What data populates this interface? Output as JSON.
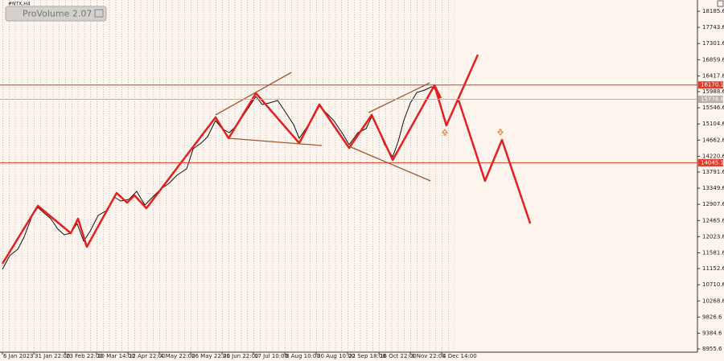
{
  "chart_data": {
    "type": "line",
    "title": "#NTX,H4",
    "indicator": "ProVolume 2.07",
    "xlim": [
      0,
      22.15
    ],
    "ylim": [
      8868,
      18493
    ],
    "xticks": [
      {
        "value": 0,
        "label": "6 Jan 2023"
      },
      {
        "value": 1,
        "label": "31 Jan 22:00"
      },
      {
        "value": 2,
        "label": "23 Feb 22:00"
      },
      {
        "value": 3,
        "label": "20 Mar 14:00"
      },
      {
        "value": 4,
        "label": "12 Apr 22:00"
      },
      {
        "value": 5,
        "label": "4 May 22:00"
      },
      {
        "value": 6,
        "label": "26 May 22:00"
      },
      {
        "value": 7,
        "label": "21 Jun 22:00"
      },
      {
        "value": 8,
        "label": "17 Jul 10:00"
      },
      {
        "value": 9,
        "label": "8 Aug 10:00"
      },
      {
        "value": 10,
        "label": "30 Aug 10:00"
      },
      {
        "value": 11,
        "label": "22 Sep 18:00"
      },
      {
        "value": 12,
        "label": "16 Oct 22:00"
      },
      {
        "value": 13,
        "label": "8 Nov 22:00"
      },
      {
        "value": 14,
        "label": "4 Dec 14:00"
      }
    ],
    "yticks": [
      18185.6,
      17743.6,
      17301.6,
      16859.6,
      16417.6,
      15988.6,
      15546.6,
      15104.6,
      14662.6,
      14220.6,
      13791.6,
      13349.6,
      12907.6,
      12465.6,
      12023.6,
      11581.6,
      11152.6,
      10710.6,
      10268.6,
      9826.6,
      9384.6,
      8955.6
    ],
    "levels": [
      {
        "value": 16170.1,
        "color": "#e03a2a"
      },
      {
        "value": 14045.1,
        "color": "#e03a2a"
      },
      {
        "value": 15778.8,
        "color": "#b8b0aa"
      }
    ],
    "series": [
      {
        "color": "#111111",
        "width": 1,
        "x": [
          0,
          0.23,
          0.49,
          0.69,
          0.95,
          1.13,
          1.33,
          1.54,
          1.77,
          1.97,
          2.18,
          2.38,
          2.59,
          2.79,
          3.05,
          3.31,
          3.56,
          3.77,
          4.03,
          4.28,
          4.54,
          4.79,
          5.05,
          5.31,
          5.56,
          5.87,
          6.08,
          6.33,
          6.54,
          6.79,
          7.0,
          7.23,
          7.49,
          7.74,
          8.08,
          8.28,
          8.51,
          8.77,
          9.03,
          9.28,
          9.46,
          9.67,
          9.92,
          10.1,
          10.31,
          10.56,
          10.82,
          11.05,
          11.33,
          11.59,
          11.77,
          11.97,
          12.18,
          12.44,
          12.62,
          12.79,
          13.0,
          13.21,
          13.46,
          13.67,
          13.77,
          13.92
        ],
        "values": [
          11131,
          11505,
          11680,
          12010,
          12603,
          12823,
          12669,
          12516,
          12230,
          12076,
          12120,
          12384,
          11900,
          12164,
          12603,
          12735,
          13109,
          12999,
          13043,
          13263,
          12889,
          13109,
          13329,
          13482,
          13702,
          13878,
          14427,
          14581,
          14757,
          15197,
          14977,
          14867,
          15087,
          15416,
          15856,
          15636,
          15680,
          15746,
          15416,
          15087,
          14713,
          14977,
          15306,
          15592,
          15416,
          15197,
          14867,
          14537,
          14867,
          14977,
          15306,
          14977,
          14537,
          14208,
          14647,
          15197,
          15680,
          15966,
          16032,
          16120,
          16076,
          15812
        ]
      },
      {
        "color": "#e41f1f",
        "width": 2.5,
        "x": [
          0,
          1.13,
          2.18,
          2.41,
          2.69,
          3.64,
          3.97,
          4.21,
          4.59,
          6.79,
          7.21,
          8.08,
          9.46,
          10.1,
          11.05,
          11.77,
          12.44,
          13.77,
          13.97
        ],
        "values": [
          11285,
          12867,
          12120,
          12516,
          11746,
          13219,
          12955,
          13153,
          12801,
          15285,
          14713,
          15944,
          14581,
          15636,
          14449,
          15350,
          14120,
          16164,
          15812
        ]
      },
      {
        "color": "#e41f1f",
        "width": 2.5,
        "x": [
          13.77,
          14.15,
          15.15
        ],
        "values": [
          16164,
          15065,
          16999
        ]
      },
      {
        "color": "#e41f1f",
        "width": 2.5,
        "x": [
          14.54,
          15.38,
          15.92,
          16.82
        ],
        "values": [
          15746,
          13548,
          14669,
          12384
        ]
      },
      {
        "color": "#9b5a2e",
        "width": 1.3,
        "x": [
          6.79,
          9.21
        ],
        "values": [
          15350,
          16515
        ]
      },
      {
        "color": "#9b5a2e",
        "width": 1.3,
        "x": [
          7.21,
          10.18
        ],
        "values": [
          14713,
          14515
        ]
      },
      {
        "color": "#9b5a2e",
        "width": 1.3,
        "x": [
          11.67,
          13.62
        ],
        "values": [
          15416,
          16230
        ]
      },
      {
        "color": "#9b5a2e",
        "width": 1.3,
        "x": [
          11.05,
          13.64
        ],
        "values": [
          14493,
          13548
        ]
      }
    ]
  }
}
